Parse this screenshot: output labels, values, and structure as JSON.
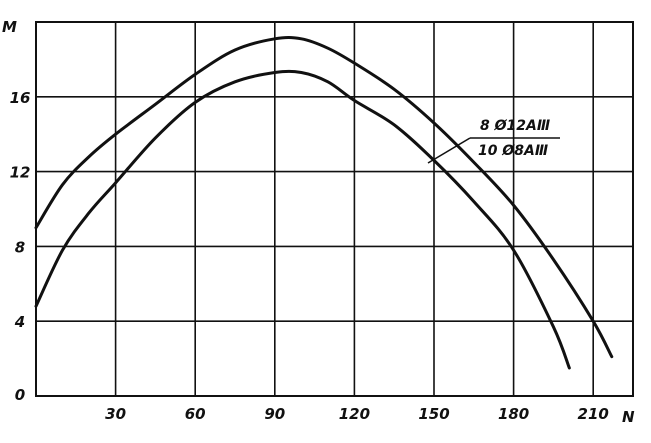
{
  "chart_data": {
    "type": "line",
    "title": "",
    "xlabel": "N",
    "ylabel": "M",
    "xlim": [
      0,
      225
    ],
    "ylim": [
      0,
      20
    ],
    "grid": true,
    "x_ticks": [
      "30",
      "60",
      "90",
      "120",
      "150",
      "180",
      "210"
    ],
    "y_ticks": [
      "0",
      "4",
      "8",
      "12",
      "16"
    ],
    "legend_position": "right, between curves",
    "legend_labels": [
      "8 Ø12AⅢ",
      "10 Ø8AⅢ"
    ],
    "series": [
      {
        "name": "8 Ø12AⅢ",
        "points": [
          [
            0,
            9.0
          ],
          [
            10,
            11.3
          ],
          [
            20,
            12.8
          ],
          [
            30,
            14.0
          ],
          [
            45,
            15.6
          ],
          [
            60,
            17.2
          ],
          [
            75,
            18.5
          ],
          [
            90,
            19.1
          ],
          [
            100,
            19.1
          ],
          [
            110,
            18.6
          ],
          [
            120,
            17.8
          ],
          [
            135,
            16.4
          ],
          [
            150,
            14.6
          ],
          [
            165,
            12.5
          ],
          [
            180,
            10.2
          ],
          [
            195,
            7.3
          ],
          [
            210,
            4.0
          ],
          [
            217,
            2.1
          ]
        ]
      },
      {
        "name": "10 Ø8AⅢ",
        "points": [
          [
            0,
            4.8
          ],
          [
            10,
            7.8
          ],
          [
            20,
            9.8
          ],
          [
            30,
            11.4
          ],
          [
            45,
            13.8
          ],
          [
            60,
            15.7
          ],
          [
            75,
            16.8
          ],
          [
            90,
            17.3
          ],
          [
            100,
            17.3
          ],
          [
            110,
            16.8
          ],
          [
            120,
            15.8
          ],
          [
            135,
            14.5
          ],
          [
            150,
            12.6
          ],
          [
            165,
            10.4
          ],
          [
            180,
            7.8
          ],
          [
            195,
            3.7
          ],
          [
            201,
            1.5
          ]
        ]
      }
    ],
    "colors": {
      "line": "#111111",
      "grid": "#111111",
      "background": "#ffffff"
    }
  }
}
